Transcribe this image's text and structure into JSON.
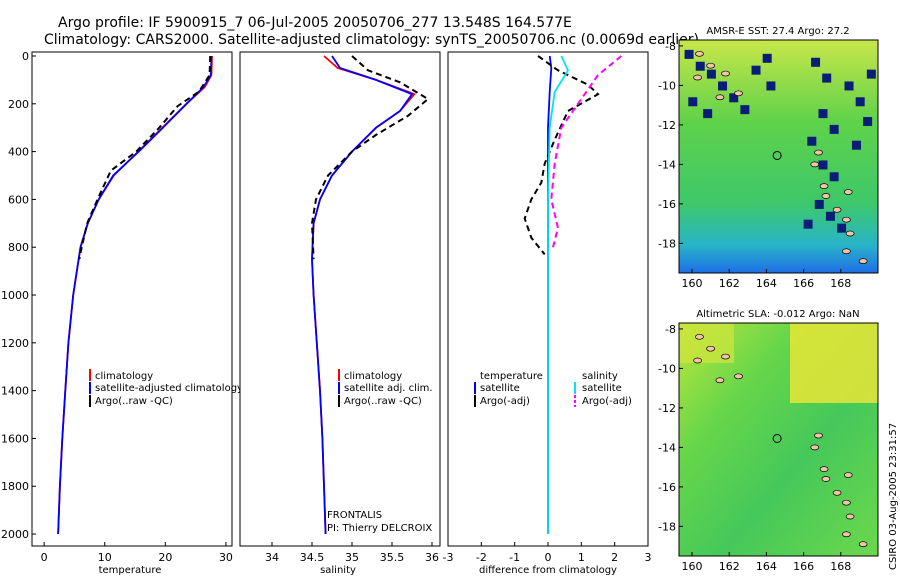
{
  "title_line1": "Argo profile: IF 5900915_7 06-Jul-2005 20050706_277 13.548S 164.577E",
  "title_line2": "Climatology: CARS2000. Satellite-adjusted climatology: synTS_20050706.nc (0.0069d earlier)",
  "side_label": "CSIRO 03-Aug-2005 23:31:57",
  "panel_note_1": "FRONTALIS",
  "panel_note_2": "PI: Thierry DELCROIX",
  "colors": {
    "climatology": "#ff0000",
    "satellite": "#0000ff",
    "argo": "#000000",
    "sal_satellite": "#00e5ee",
    "sal_argo": "#ff00ff"
  },
  "chart_data": [
    {
      "type": "line",
      "xlabel": "temperature",
      "ylabel": "",
      "xlim": [
        -2,
        31
      ],
      "ylim": [
        2050,
        0
      ],
      "y_reversed": true,
      "xticks": [
        0,
        10,
        20,
        30
      ],
      "yticks": [
        0,
        200,
        400,
        600,
        800,
        1000,
        1200,
        1400,
        1600,
        1800,
        2000
      ],
      "legend": [
        "climatology",
        "satellite-adjusted climatology",
        "Argo(..raw -QC)"
      ],
      "series": [
        {
          "name": "climatology",
          "color": "#ff0000",
          "dash": "",
          "points": [
            [
              27.7,
              0
            ],
            [
              27.6,
              80
            ],
            [
              26.5,
              130
            ],
            [
              23.5,
              200
            ],
            [
              19.5,
              300
            ],
            [
              15.5,
              400
            ],
            [
              11.5,
              500
            ],
            [
              9.0,
              600
            ],
            [
              7.2,
              700
            ],
            [
              6.0,
              800
            ],
            [
              4.8,
              1000
            ],
            [
              4.0,
              1200
            ],
            [
              3.5,
              1400
            ],
            [
              3.0,
              1600
            ],
            [
              2.6,
              1800
            ],
            [
              2.3,
              2000
            ]
          ]
        },
        {
          "name": "satellite-adjusted climatology",
          "color": "#0000ff",
          "dash": "",
          "points": [
            [
              27.6,
              0
            ],
            [
              27.5,
              80
            ],
            [
              26.3,
              130
            ],
            [
              23.5,
              200
            ],
            [
              19.6,
              300
            ],
            [
              15.6,
              400
            ],
            [
              11.4,
              500
            ],
            [
              9.0,
              600
            ],
            [
              7.2,
              700
            ],
            [
              6.0,
              800
            ],
            [
              4.8,
              1000
            ],
            [
              4.0,
              1200
            ],
            [
              3.5,
              1400
            ],
            [
              3.0,
              1600
            ],
            [
              2.6,
              1800
            ],
            [
              2.3,
              2000
            ]
          ]
        },
        {
          "name": "Argo(..raw -QC)",
          "color": "#000000",
          "dash": "6,4",
          "points": [
            [
              27.4,
              0
            ],
            [
              27.3,
              80
            ],
            [
              25.5,
              150
            ],
            [
              22.0,
              210
            ],
            [
              19.0,
              300
            ],
            [
              15.2,
              400
            ],
            [
              11.0,
              480
            ],
            [
              8.8,
              600
            ],
            [
              7.1,
              700
            ],
            [
              6.2,
              800
            ],
            [
              5.8,
              850
            ]
          ]
        }
      ]
    },
    {
      "type": "line",
      "xlabel": "salinity",
      "ylabel": "",
      "xlim": [
        33.6,
        36.1
      ],
      "ylim": [
        2050,
        0
      ],
      "y_reversed": true,
      "xticks": [
        34,
        34.5,
        35,
        35.5,
        36
      ],
      "legend": [
        "climatology",
        "satellite adj. clim.",
        "Argo(..raw -QC)"
      ],
      "series": [
        {
          "name": "climatology",
          "color": "#ff0000",
          "dash": "",
          "points": [
            [
              34.65,
              0
            ],
            [
              34.82,
              50
            ],
            [
              35.3,
              100
            ],
            [
              35.78,
              160
            ],
            [
              35.6,
              230
            ],
            [
              35.3,
              300
            ],
            [
              35.0,
              400
            ],
            [
              34.75,
              500
            ],
            [
              34.6,
              600
            ],
            [
              34.52,
              700
            ],
            [
              34.5,
              850
            ],
            [
              34.52,
              1000
            ],
            [
              34.56,
              1200
            ],
            [
              34.6,
              1400
            ],
            [
              34.63,
              1600
            ],
            [
              34.65,
              1800
            ],
            [
              34.67,
              2000
            ]
          ]
        },
        {
          "name": "satellite adj. clim.",
          "color": "#0000ff",
          "dash": "",
          "points": [
            [
              34.75,
              0
            ],
            [
              34.85,
              50
            ],
            [
              35.3,
              100
            ],
            [
              35.75,
              160
            ],
            [
              35.6,
              230
            ],
            [
              35.3,
              300
            ],
            [
              35.0,
              400
            ],
            [
              34.75,
              500
            ],
            [
              34.6,
              600
            ],
            [
              34.52,
              700
            ],
            [
              34.5,
              850
            ],
            [
              34.52,
              1000
            ],
            [
              34.56,
              1200
            ],
            [
              34.6,
              1400
            ],
            [
              34.63,
              1600
            ],
            [
              34.65,
              1800
            ],
            [
              34.67,
              2000
            ]
          ]
        },
        {
          "name": "Argo(..raw -QC)",
          "color": "#000000",
          "dash": "6,4",
          "points": [
            [
              35.0,
              0
            ],
            [
              35.2,
              60
            ],
            [
              35.6,
              110
            ],
            [
              35.95,
              180
            ],
            [
              35.7,
              250
            ],
            [
              35.3,
              330
            ],
            [
              35.0,
              400
            ],
            [
              34.7,
              500
            ],
            [
              34.55,
              600
            ],
            [
              34.5,
              700
            ],
            [
              34.52,
              850
            ]
          ]
        }
      ]
    },
    {
      "type": "line",
      "xlabel": "difference from climatology",
      "ylabel": "",
      "xlim": [
        -3,
        3
      ],
      "ylim": [
        2050,
        0
      ],
      "y_reversed": true,
      "xticks": [
        -3,
        -2,
        -1,
        0,
        1,
        2,
        3
      ],
      "legend_temperature_title": "temperature",
      "legend_salinity_title": "salinity",
      "legend": [
        "satellite",
        "Argo(-adj)",
        "satellite",
        "Argo(-adj)"
      ],
      "series": [
        {
          "name": "satellite",
          "group": "temperature",
          "color": "#0000ff",
          "dash": "",
          "points": [
            [
              0.05,
              0
            ],
            [
              0.1,
              50
            ],
            [
              0.05,
              150
            ],
            [
              0,
              300
            ],
            [
              0,
              2000
            ]
          ]
        },
        {
          "name": "Argo(-adj)",
          "group": "temperature",
          "color": "#000000",
          "dash": "6,4",
          "points": [
            [
              -0.3,
              0
            ],
            [
              0.3,
              60
            ],
            [
              1.2,
              120
            ],
            [
              1.5,
              160
            ],
            [
              0.6,
              230
            ],
            [
              0.2,
              350
            ],
            [
              -0.1,
              450
            ],
            [
              -0.2,
              530
            ],
            [
              -0.5,
              600
            ],
            [
              -0.7,
              680
            ],
            [
              -0.5,
              760
            ],
            [
              -0.1,
              830
            ]
          ]
        },
        {
          "name": "satellite",
          "group": "salinity",
          "color": "#00e5ee",
          "dash": "",
          "points": [
            [
              0.4,
              0
            ],
            [
              0.6,
              60
            ],
            [
              0.2,
              150
            ],
            [
              0.05,
              300
            ],
            [
              0,
              600
            ],
            [
              0,
              2000
            ]
          ]
        },
        {
          "name": "Argo(-adj)",
          "group": "salinity",
          "color": "#ff00ff",
          "dash": "6,4",
          "points": [
            [
              2.2,
              0
            ],
            [
              1.5,
              80
            ],
            [
              1.0,
              180
            ],
            [
              0.4,
              300
            ],
            [
              0.2,
              450
            ],
            [
              0.1,
              600
            ],
            [
              0.3,
              720
            ],
            [
              0.15,
              800
            ]
          ]
        }
      ]
    }
  ],
  "maps": [
    {
      "title": "AMSR-E SST: 27.4 Argo: 27.2",
      "xticks": [
        160,
        162,
        164,
        166,
        168
      ],
      "yticks": [
        -8,
        -10,
        -12,
        -14,
        -16,
        -18
      ],
      "xlim": [
        159.3,
        170
      ],
      "ylim": [
        -19.5,
        -7.7
      ],
      "marker": [
        164.577,
        -13.548
      ]
    },
    {
      "title": "Altimetric SLA: -0.012 Argo: NaN",
      "xticks": [
        160,
        162,
        164,
        166,
        168
      ],
      "yticks": [
        -8,
        -10,
        -12,
        -14,
        -16,
        -18
      ],
      "xlim": [
        159.3,
        170
      ],
      "ylim": [
        -19.5,
        -7.7
      ],
      "marker": [
        164.577,
        -13.548
      ]
    }
  ]
}
